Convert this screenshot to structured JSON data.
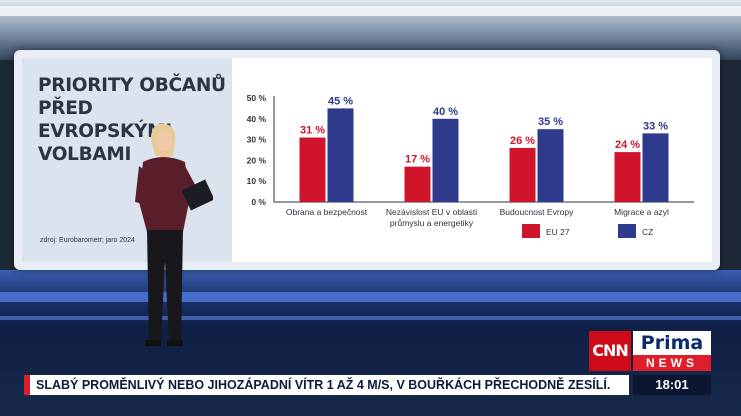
{
  "screen": {
    "title": "PRIORITY OBČANŮ PŘED EVROPSKÝMI VOLBAMI",
    "source": "zdroj: Eurobarometr; jaro 2024"
  },
  "chart_data": {
    "type": "bar",
    "categories": [
      "Obrana a bezpečnost",
      "Nezávislost EU v oblasti průmyslu a energetiky",
      "Budoucnost Evropy",
      "Migrace a azyl"
    ],
    "category_lines": [
      [
        "Obrana a bezpečnost"
      ],
      [
        "Nezávislost EU v oblasti",
        "průmyslu a energetiky"
      ],
      [
        "Budoucnost Evropy"
      ],
      [
        "Migrace a azyl"
      ]
    ],
    "series": [
      {
        "name": "EU 27",
        "values": [
          31,
          17,
          26,
          24
        ],
        "color": "#d0142c"
      },
      {
        "name": "CZ",
        "values": [
          45,
          40,
          35,
          33
        ],
        "color": "#2e3a8c"
      }
    ],
    "ylim": [
      0,
      50
    ],
    "yticks": [
      0,
      10,
      20,
      30,
      40,
      50
    ],
    "unit": "%",
    "legend_position": "bottom-right",
    "grid": false
  },
  "branding": {
    "cnn": "CNN",
    "prima": "Prima",
    "news": "NEWS"
  },
  "ticker": {
    "text": "SLABÝ PROMĚNLIVÝ NEBO JIHOZÁPADNÍ VÍTR 1 AŽ 4 M/S, V BOUŘKÁCH PŘECHODNĚ ZESÍLÍ.",
    "time": "18:01"
  }
}
